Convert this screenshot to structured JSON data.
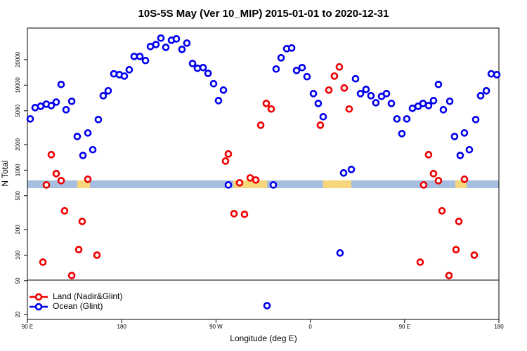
{
  "chart_data": {
    "type": "scatter",
    "title": "10S-5S May (Ver 10_MIP)   2015-01-01 to 2020-12-31",
    "x_label": "Longitude (deg E)",
    "y_label": "N Total",
    "log_y": true,
    "grid": false,
    "legend": "lower left",
    "xlim": [
      90,
      540
    ],
    "xticks": [
      {
        "value": 90,
        "label": "90 E"
      },
      180,
      {
        "value": 270,
        "label": "90 W"
      },
      {
        "value": 360,
        "label": "0"
      },
      {
        "value": 450,
        "label": "90 E"
      },
      {
        "value": 540,
        "label": "180"
      }
    ],
    "ylim": [
      17.5,
      47000
    ],
    "yticks": [
      20,
      50,
      100,
      200,
      500,
      1000,
      2000,
      5000,
      10000,
      20000
    ],
    "series": [
      {
        "name": "Land (Nadir&Glint)",
        "color": "#ee0000",
        "x": [
          104.8,
          108.1,
          112.8,
          117.5,
          122.2,
          125.5,
          132.3,
          139.0,
          142.3,
          147.7,
          156.4,
          279.1,
          281.8,
          287.2,
          292.5,
          297.2,
          302.6,
          308.0,
          312.7,
          318.0,
          322.7,
          369.6,
          377.7,
          383.0,
          387.7,
          392.4,
          397.1,
          464.9,
          468.2,
          472.9,
          477.6,
          482.3,
          485.7,
          492.4,
          499.1,
          501.8,
          507.1,
          516.5
        ],
        "values": [
          82.6,
          670,
          1520,
          910,
          752,
          332,
          57.5,
          116,
          249,
          781,
          100,
          1280,
          1550,
          307,
          710,
          302,
          811,
          766,
          3380,
          6100,
          5240,
          3380,
          8750,
          12800,
          16400,
          9270,
          5240,
          82.6,
          670,
          1520,
          910,
          752,
          332,
          57.5,
          116,
          249,
          781,
          100
        ]
      },
      {
        "name": "Ocean (Glint)",
        "color": "#0000ee",
        "x": [
          92.7,
          97.4,
          102.7,
          108.1,
          112.8,
          117.5,
          122.2,
          126.9,
          132.3,
          137.6,
          143.0,
          147.7,
          152.4,
          157.7,
          162.4,
          167.1,
          172.5,
          177.8,
          182.5,
          187.2,
          191.9,
          197.3,
          202.7,
          207.4,
          212.7,
          217.4,
          222.1,
          227.5,
          232.2,
          237.5,
          242.2,
          247.6,
          252.3,
          257.7,
          262.4,
          267.7,
          272.4,
          277.1,
          281.8,
          324.7,
          327.4,
          332.1,
          337.5,
          342.2,
          346.9,
          352.2,
          356.9,
          363.0,
          367.6,
          372.3,
          388.4,
          391.8,
          399.2,
          403.2,
          407.9,
          413.2,
          417.9,
          422.6,
          428.0,
          432.7,
          437.4,
          442.7,
          447.4,
          452.1,
          457.5,
          462.9,
          467.6,
          472.9,
          477.6,
          482.3,
          487.0,
          493.1,
          497.7,
          503.1,
          507.1,
          511.8,
          517.9,
          522.6,
          528.0,
          532.7,
          538.0,
          318.7
        ],
        "values": [
          4010,
          5440,
          5650,
          5980,
          5750,
          6330,
          10200,
          5140,
          6460,
          2490,
          1490,
          2740,
          1740,
          3940,
          7520,
          8590,
          13600,
          13300,
          12800,
          15200,
          21800,
          21800,
          19500,
          28500,
          30100,
          35800,
          27900,
          33800,
          35100,
          26400,
          31300,
          18000,
          15800,
          16100,
          13800,
          10400,
          6580,
          8750,
          670,
          670,
          15500,
          21000,
          26900,
          27400,
          14900,
          16100,
          12600,
          7960,
          6100,
          4250,
          106,
          927,
          1020,
          11900,
          7960,
          8920,
          7520,
          6210,
          7380,
          7960,
          6100,
          4010,
          2690,
          4010,
          5340,
          5650,
          6100,
          5750,
          6580,
          10200,
          5140,
          6460,
          2490,
          1490,
          2740,
          1740,
          3940,
          7520,
          8590,
          13600,
          13300,
          25.4
        ]
      }
    ]
  }
}
